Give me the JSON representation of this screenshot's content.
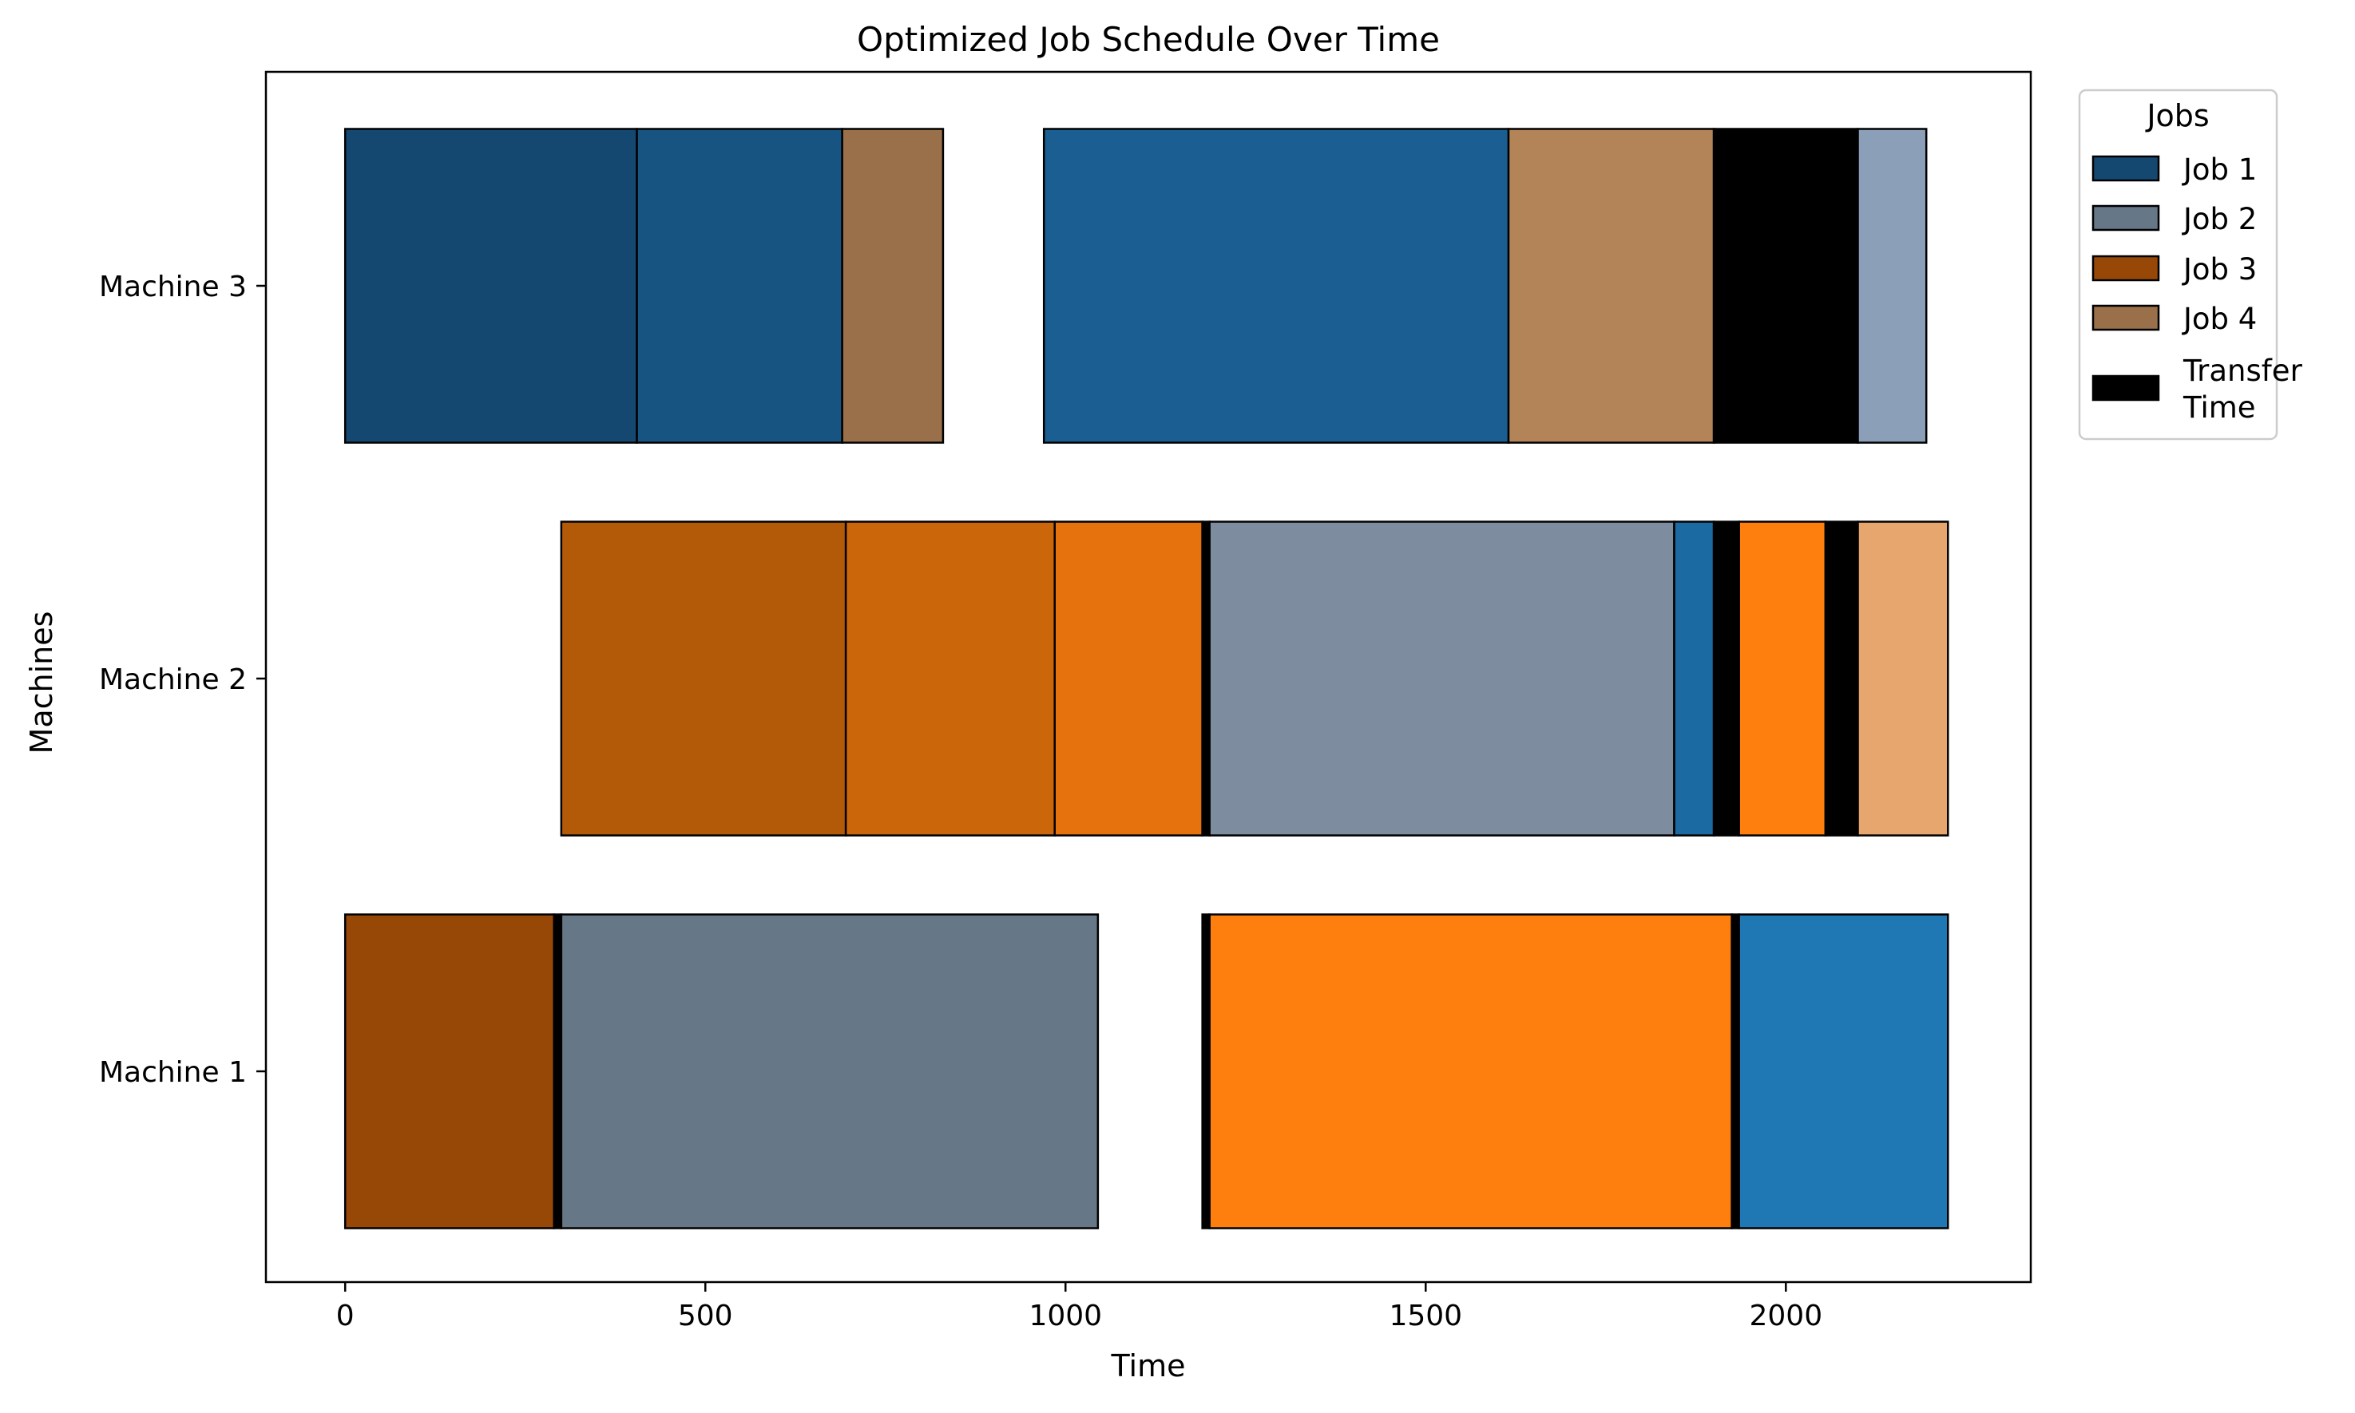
{
  "chart_data": {
    "type": "gantt",
    "title": "Optimized Job Schedule Over Time",
    "xlabel": "Time",
    "ylabel": "Machines",
    "xlim": [
      -110,
      2340
    ],
    "xticks": [
      0,
      500,
      1000,
      1500,
      2000
    ],
    "grid": false,
    "machines": [
      "Machine 1",
      "Machine 2",
      "Machine 3"
    ],
    "legend": {
      "title": "Jobs",
      "placement": "outside upper right",
      "entries": [
        {
          "label": "Job 1",
          "color": "#154870"
        },
        {
          "label": "Job 2",
          "color": "#667788"
        },
        {
          "label": "Job 3",
          "color": "#974807"
        },
        {
          "label": "Job 4",
          "color": "#997049"
        },
        {
          "label": "Transfer\nTime",
          "color": "#000000"
        }
      ]
    },
    "tasks": [
      {
        "machine": "Machine 1",
        "job": "Job 3",
        "start": 0,
        "end": 290,
        "color": "#974807"
      },
      {
        "machine": "Machine 1",
        "job": "Transfer Time",
        "start": 290,
        "end": 300,
        "color": "#000000"
      },
      {
        "machine": "Machine 1",
        "job": "Job 2",
        "start": 300,
        "end": 1045,
        "color": "#667788"
      },
      {
        "machine": "Machine 1",
        "job": "Transfer Time",
        "start": 1190,
        "end": 1200,
        "color": "#000000"
      },
      {
        "machine": "Machine 1",
        "job": "Job 3",
        "start": 1200,
        "end": 1925,
        "color": "#ff7f0e"
      },
      {
        "machine": "Machine 1",
        "job": "Transfer Time",
        "start": 1925,
        "end": 1935,
        "color": "#000000"
      },
      {
        "machine": "Machine 1",
        "job": "Job 1",
        "start": 1935,
        "end": 2225,
        "color": "#1f77b4"
      },
      {
        "machine": "Machine 2",
        "job": "Job 3",
        "start": 300,
        "end": 695,
        "color": "#b35a09"
      },
      {
        "machine": "Machine 2",
        "job": "Job 3",
        "start": 695,
        "end": 985,
        "color": "#cc660b"
      },
      {
        "machine": "Machine 2",
        "job": "Job 3",
        "start": 985,
        "end": 1190,
        "color": "#e5720d"
      },
      {
        "machine": "Machine 2",
        "job": "Transfer Time",
        "start": 1190,
        "end": 1200,
        "color": "#000000"
      },
      {
        "machine": "Machine 2",
        "job": "Job 2",
        "start": 1200,
        "end": 1845,
        "color": "#7e8ca0"
      },
      {
        "machine": "Machine 2",
        "job": "Job 1",
        "start": 1845,
        "end": 1900,
        "color": "#1c6aa2"
      },
      {
        "machine": "Machine 2",
        "job": "Transfer Time",
        "start": 1900,
        "end": 1935,
        "color": "#000000"
      },
      {
        "machine": "Machine 2",
        "job": "Job 3",
        "start": 1935,
        "end": 2055,
        "color": "#ff7f0e"
      },
      {
        "machine": "Machine 2",
        "job": "Transfer Time",
        "start": 2055,
        "end": 2100,
        "color": "#000000"
      },
      {
        "machine": "Machine 2",
        "job": "Job 4",
        "start": 2100,
        "end": 2225,
        "color": "#e6a66d"
      },
      {
        "machine": "Machine 3",
        "job": "Job 1",
        "start": 0,
        "end": 405,
        "color": "#154870"
      },
      {
        "machine": "Machine 3",
        "job": "Job 1",
        "start": 405,
        "end": 690,
        "color": "#185481"
      },
      {
        "machine": "Machine 3",
        "job": "Job 4",
        "start": 690,
        "end": 830,
        "color": "#997049"
      },
      {
        "machine": "Machine 3",
        "job": "Job 1",
        "start": 970,
        "end": 1615,
        "color": "#1b5f92"
      },
      {
        "machine": "Machine 3",
        "job": "Job 4",
        "start": 1615,
        "end": 1900,
        "color": "#b38457"
      },
      {
        "machine": "Machine 3",
        "job": "Transfer Time",
        "start": 1900,
        "end": 2100,
        "color": "#000000"
      },
      {
        "machine": "Machine 3",
        "job": "Job 2",
        "start": 2100,
        "end": 2195,
        "color": "#8b9fb8"
      }
    ]
  }
}
